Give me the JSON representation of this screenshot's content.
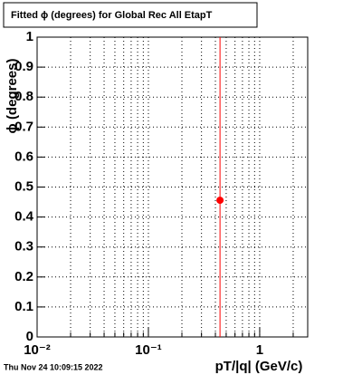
{
  "chart_data": {
    "type": "scatter",
    "title": "Fitted ϕ (degrees) for Global Rec All EtapT",
    "x_label": "pT/|q| (GeV/c)",
    "y_label": "ϕ (degrees)",
    "timestamp": "Thu Nov 24 10:09:15 2022",
    "log_x": true,
    "grid": true,
    "xlim": [
      0.01,
      2.7
    ],
    "ylim": [
      0,
      1
    ],
    "xticks": [
      {
        "value": 0.01,
        "label": "10⁻²"
      },
      {
        "value": 0.1,
        "label": "10⁻¹"
      },
      1
    ],
    "xminorticks": [
      0.02,
      0.03,
      0.04,
      0.05,
      0.06,
      0.07,
      0.08,
      0.09,
      0.2,
      0.3,
      0.4,
      0.5,
      0.6,
      0.7,
      0.8,
      0.9,
      2
    ],
    "yticks": [
      0,
      0.1,
      0.2,
      0.3,
      0.4,
      0.5,
      0.6,
      0.7,
      0.8,
      0.9,
      1
    ],
    "series": [
      {
        "color": "#ff0000",
        "x": [
          0.44
        ],
        "values": [
          0.456
        ],
        "errors": [
          0.6
        ]
      }
    ]
  }
}
